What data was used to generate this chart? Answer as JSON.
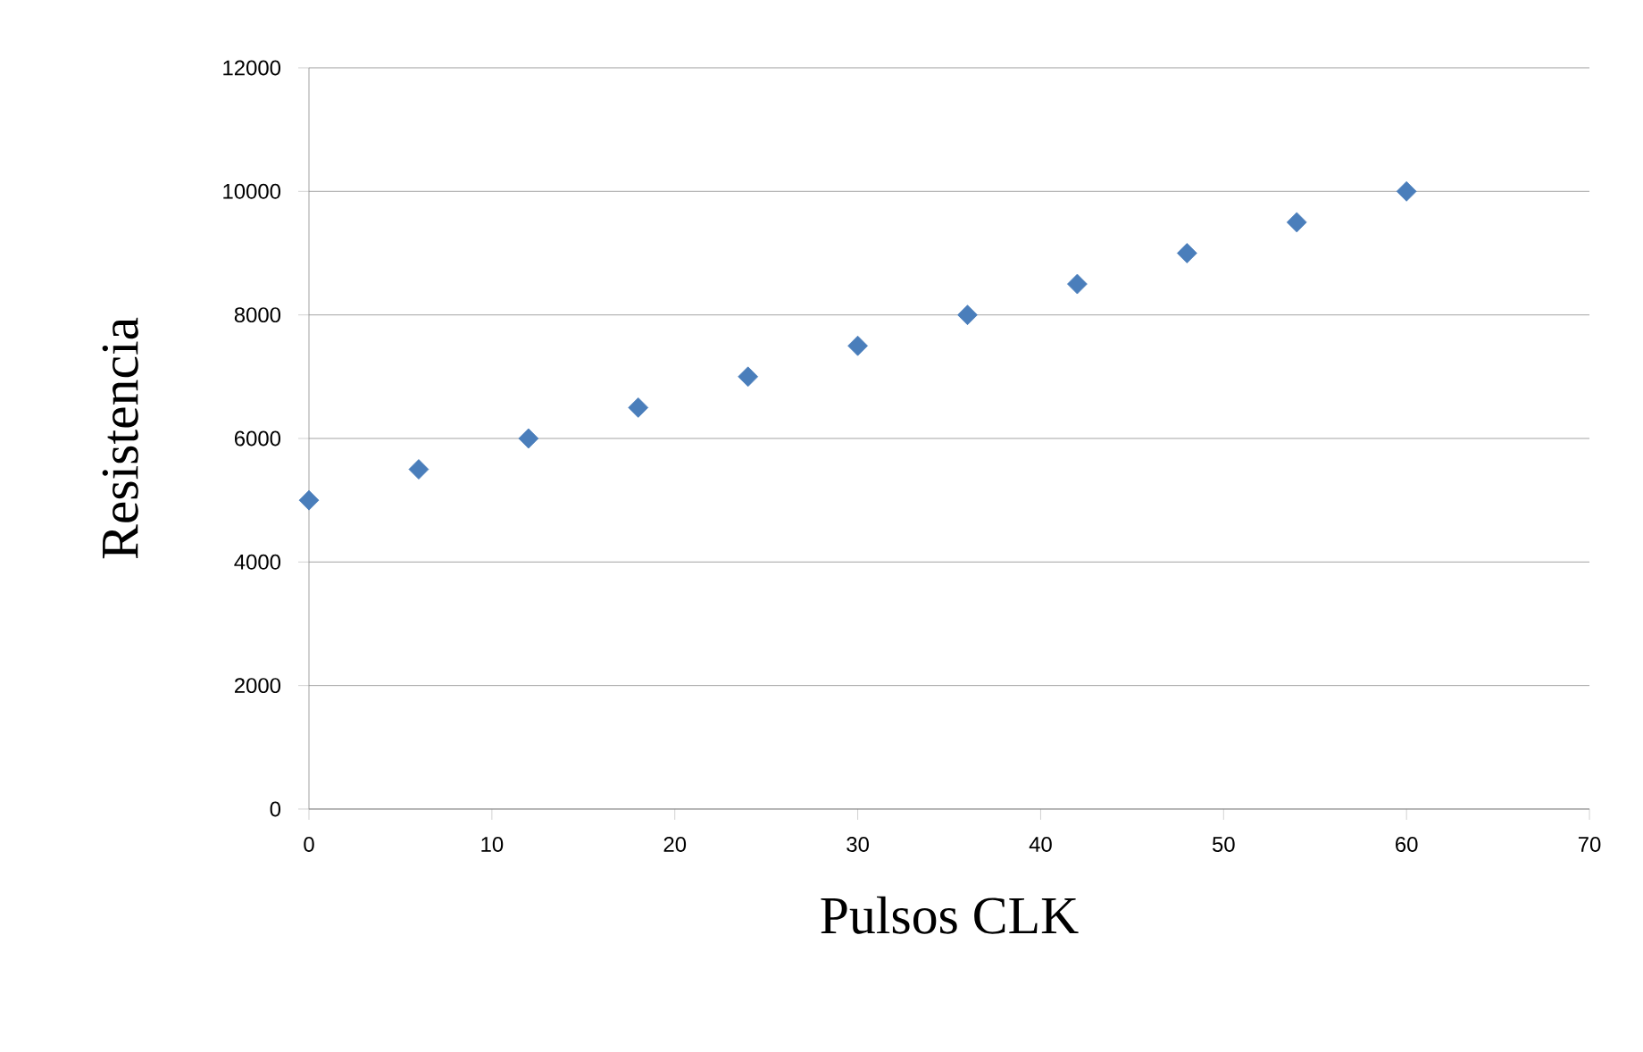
{
  "chart_data": {
    "type": "scatter",
    "xlabel": "Pulsos CLK",
    "ylabel": "Resistencia",
    "x": [
      0,
      6,
      12,
      18,
      24,
      30,
      36,
      42,
      48,
      54,
      60
    ],
    "series": [
      {
        "color": "#4a7ebb",
        "values": [
          5000,
          5500,
          6000,
          6500,
          7000,
          7500,
          8000,
          8500,
          9000,
          9500,
          10000
        ]
      }
    ],
    "xlim": [
      0,
      70
    ],
    "ylim": [
      0,
      12000
    ],
    "xticks": [
      0,
      10,
      20,
      30,
      40,
      50,
      60,
      70
    ],
    "yticks": [
      0,
      2000,
      4000,
      6000,
      8000,
      10000,
      12000
    ],
    "grid": "y",
    "marker": "diamond"
  }
}
